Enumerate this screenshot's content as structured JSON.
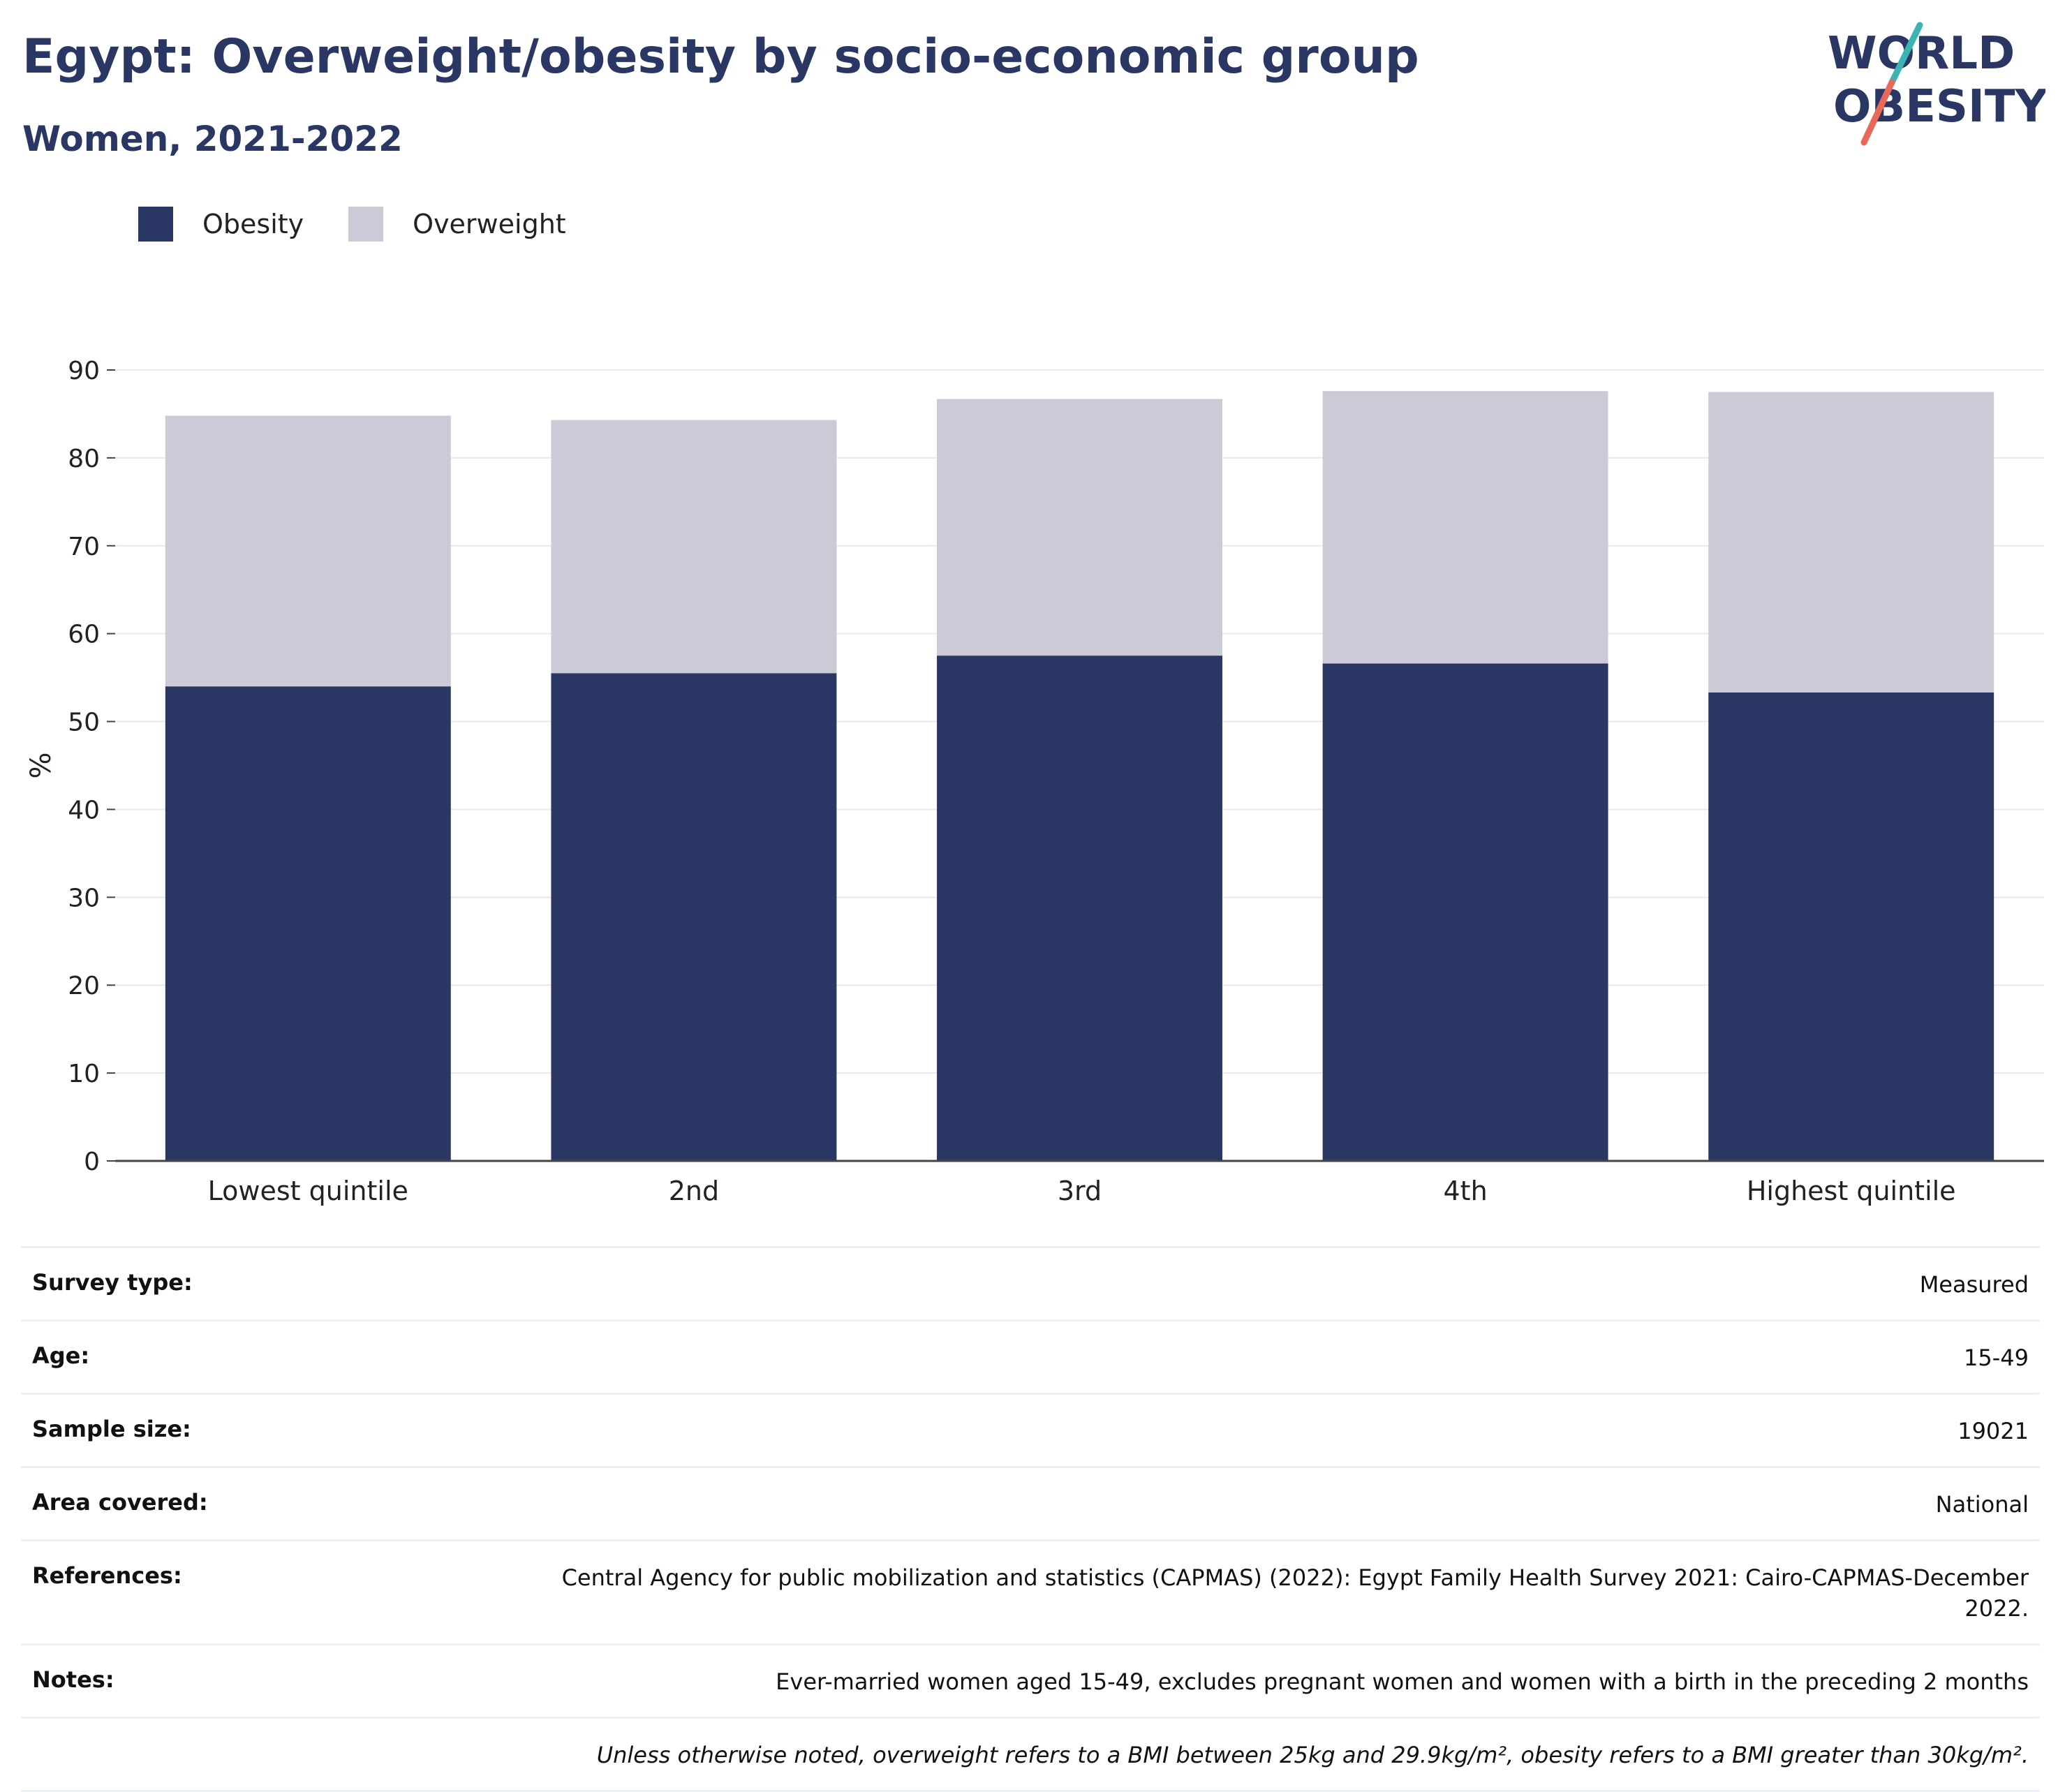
{
  "header": {
    "title": "Egypt: Overweight/obesity by socio-economic group",
    "subtitle": "Women, 2021-2022"
  },
  "logo": {
    "line1": "WORLD",
    "line2": "OBESITY",
    "accent_teal": "#3bb5b2",
    "accent_coral": "#e8685a"
  },
  "legend": [
    {
      "label": "Obesity",
      "color": "#2a3664"
    },
    {
      "label": "Overweight",
      "color": "#cacbd6"
    }
  ],
  "chart_data": {
    "type": "bar",
    "stacked": true,
    "categories": [
      "Lowest quintile",
      "2nd",
      "3rd",
      "4th",
      "Highest quintile"
    ],
    "series": [
      {
        "name": "Obesity",
        "color": "#2a3664",
        "values": [
          54.0,
          55.5,
          57.5,
          56.6,
          53.3
        ]
      },
      {
        "name": "Overweight",
        "color": "#cacbd6",
        "values": [
          30.8,
          28.8,
          29.2,
          31.0,
          34.2
        ]
      }
    ],
    "ylabel": "%",
    "xlabel": "",
    "ylim": [
      0,
      90
    ],
    "yticks": [
      0,
      10,
      20,
      30,
      40,
      50,
      60,
      70,
      80,
      90
    ],
    "grid": true,
    "legend_position": "top-left"
  },
  "info_table": [
    {
      "label": "Survey type:",
      "value": "Measured"
    },
    {
      "label": "Age:",
      "value": "15-49"
    },
    {
      "label": "Sample size:",
      "value": "19021"
    },
    {
      "label": "Area covered:",
      "value": "National"
    },
    {
      "label": "References:",
      "value": "Central Agency for public mobilization and statistics (CAPMAS) (2022): Egypt Family Health Survey 2021: Cairo-CAPMAS-December 2022."
    },
    {
      "label": "Notes:",
      "value": "Ever-married women aged 15-49, excludes pregnant women and women with a birth in the preceding 2 months"
    }
  ],
  "footnote": "Unless otherwise noted, overweight refers to a BMI between 25kg and 29.9kg/m², obesity refers to a BMI greater than 30kg/m²."
}
